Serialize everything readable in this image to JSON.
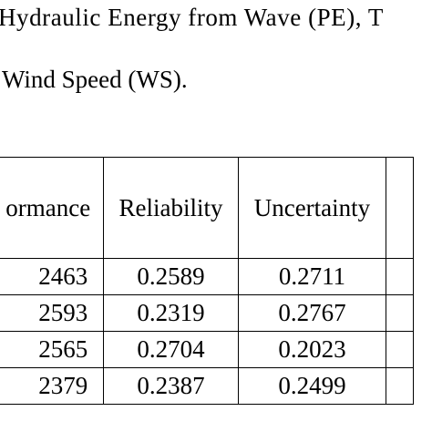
{
  "caption": {
    "line1": "Hydraulic Energy from Wave (PE), T",
    "line2": "Wind Speed (WS)."
  },
  "table": {
    "headers": [
      "ormance",
      "Reliability",
      "Uncertainty",
      ""
    ],
    "rows": [
      [
        "2463",
        "0.2589",
        "0.2711",
        ""
      ],
      [
        "2593",
        "0.2319",
        "0.2767",
        ""
      ],
      [
        "2565",
        "0.2704",
        "0.2023",
        ""
      ],
      [
        "2379",
        "0.2387",
        "0.2499",
        ""
      ]
    ]
  }
}
